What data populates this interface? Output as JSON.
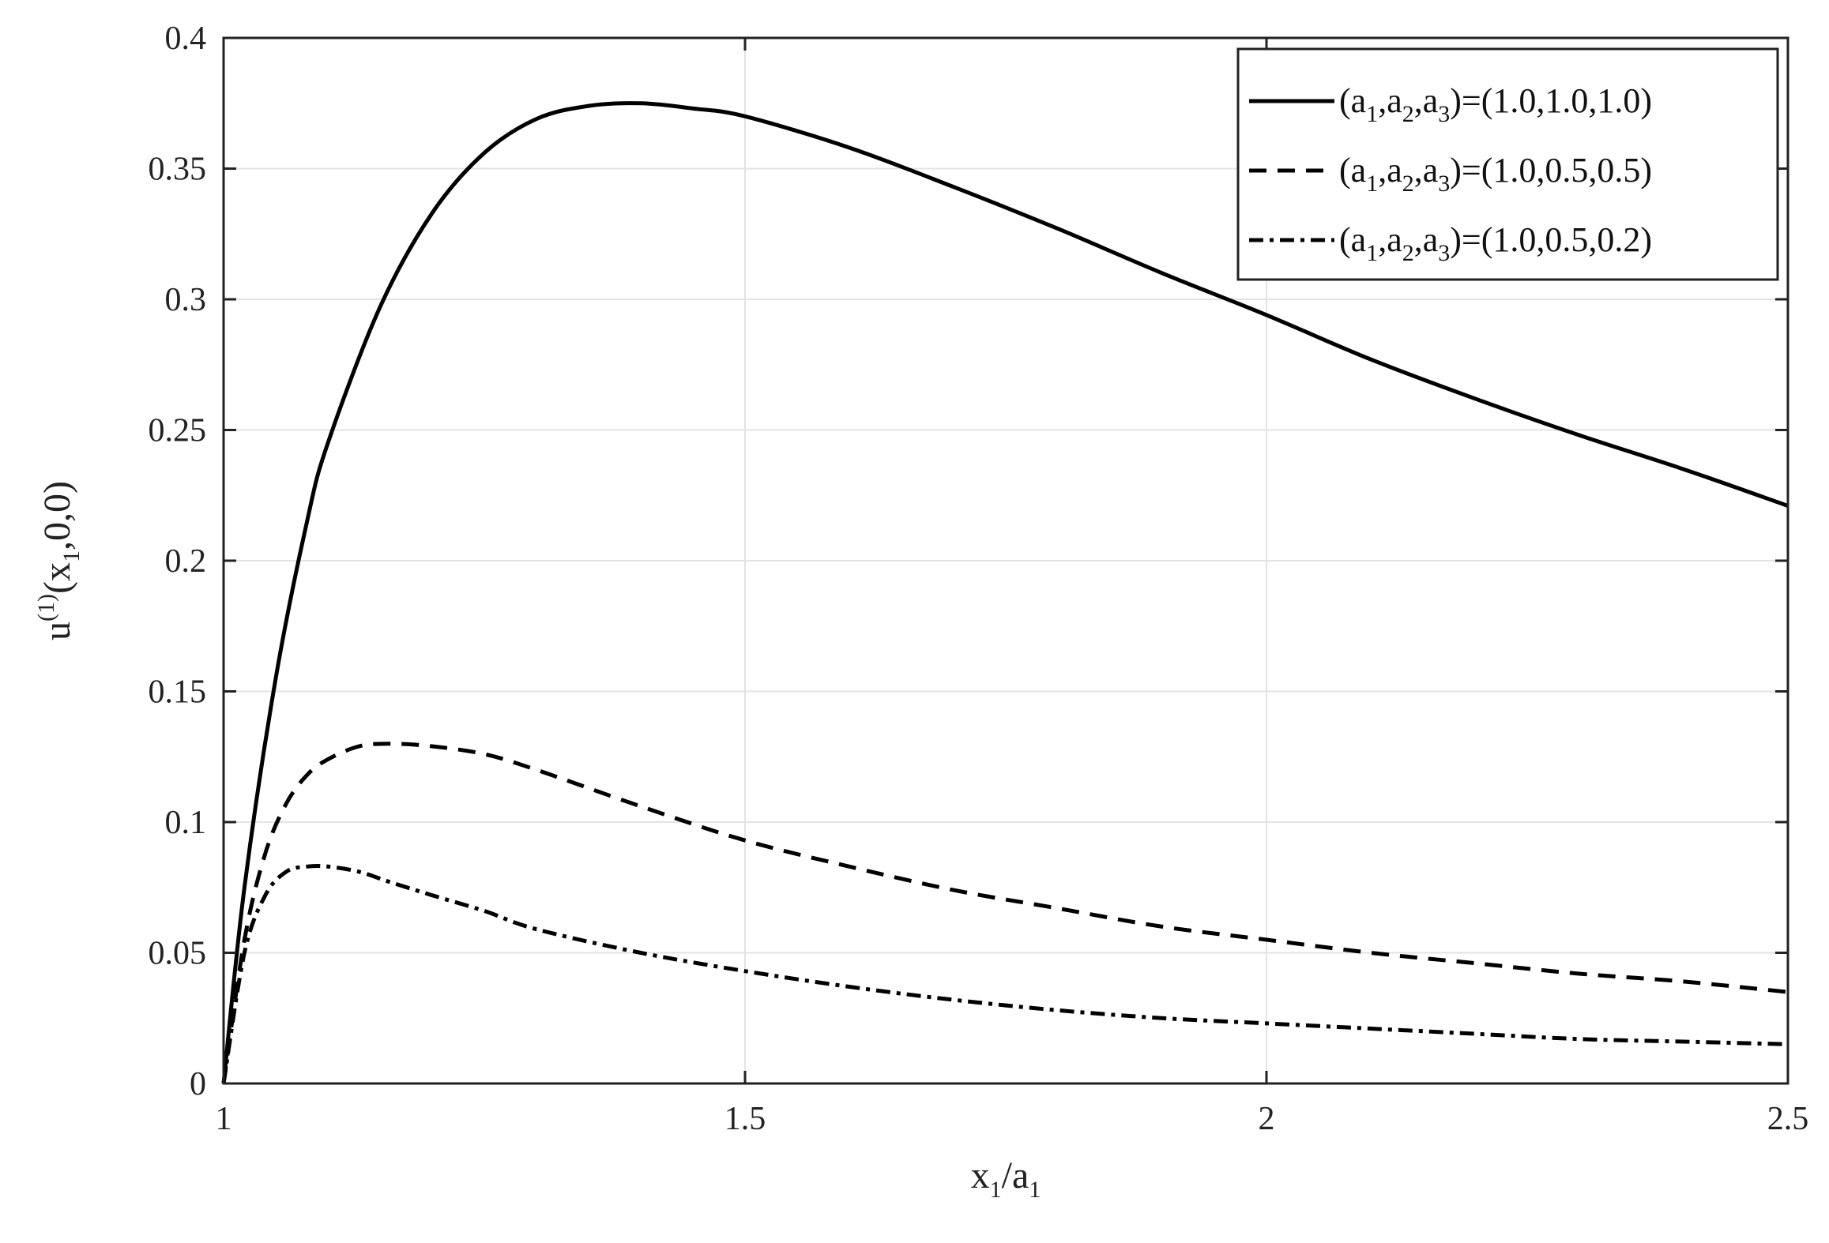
{
  "chart_data": {
    "type": "line",
    "xlim": [
      1,
      2.5
    ],
    "ylim": [
      0,
      0.4
    ],
    "x_ticks": [
      {
        "value": 1,
        "label": "1"
      },
      {
        "value": 1.5,
        "label": "1.5"
      },
      {
        "value": 2,
        "label": "2"
      },
      {
        "value": 2.5,
        "label": "2.5"
      }
    ],
    "y_ticks": [
      {
        "value": 0,
        "label": "0"
      },
      {
        "value": 0.05,
        "label": "0.05"
      },
      {
        "value": 0.1,
        "label": "0.1"
      },
      {
        "value": 0.15,
        "label": "0.15"
      },
      {
        "value": 0.2,
        "label": "0.2"
      },
      {
        "value": 0.25,
        "label": "0.25"
      },
      {
        "value": 0.3,
        "label": "0.3"
      },
      {
        "value": 0.35,
        "label": "0.35"
      },
      {
        "value": 0.4,
        "label": "0.4"
      }
    ],
    "xlabel": {
      "base": "x",
      "sub": "1",
      "mid": "/a",
      "sub2": "1"
    },
    "ylabel": {
      "pre": "u",
      "sup": "(1)",
      "mid": "(x",
      "sub": "1",
      "post": ",0,0)"
    },
    "grid": true,
    "legend_position": "top-right",
    "series": [
      {
        "name": "(a1,a2,a3)=(1.0,1.0,1.0)",
        "legend": {
          "p1": "(a",
          "s1": "1",
          "p2": ",a",
          "s2": "2",
          "p3": ",a",
          "s3": "3",
          "p4": ")=(1.0,1.0,1.0)"
        },
        "style": "solid",
        "color": "#000000",
        "x": [
          1.0,
          1.02,
          1.05,
          1.08,
          1.1,
          1.15,
          1.2,
          1.25,
          1.3,
          1.35,
          1.4,
          1.45,
          1.5,
          1.6,
          1.7,
          1.8,
          1.9,
          2.0,
          2.1,
          2.2,
          2.3,
          2.4,
          2.5
        ],
        "y": [
          0.0,
          0.075,
          0.155,
          0.215,
          0.245,
          0.297,
          0.333,
          0.356,
          0.369,
          0.374,
          0.375,
          0.373,
          0.37,
          0.358,
          0.343,
          0.327,
          0.31,
          0.294,
          0.277,
          0.262,
          0.248,
          0.235,
          0.221
        ]
      },
      {
        "name": "(a1,a2,a3)=(1.0,0.5,0.5)",
        "legend": {
          "p1": "(a",
          "s1": "1",
          "p2": ",a",
          "s2": "2",
          "p3": ",a",
          "s3": "3",
          "p4": ")=(1.0,0.5,0.5)"
        },
        "style": "dashed",
        "color": "#000000",
        "x": [
          1.0,
          1.02,
          1.04,
          1.06,
          1.08,
          1.1,
          1.13,
          1.16,
          1.2,
          1.25,
          1.3,
          1.4,
          1.5,
          1.6,
          1.7,
          1.8,
          1.9,
          2.0,
          2.1,
          2.2,
          2.3,
          2.4,
          2.5
        ],
        "y": [
          0.0,
          0.055,
          0.088,
          0.107,
          0.118,
          0.124,
          0.129,
          0.13,
          0.129,
          0.126,
          0.12,
          0.106,
          0.093,
          0.083,
          0.074,
          0.067,
          0.06,
          0.055,
          0.05,
          0.046,
          0.042,
          0.039,
          0.035
        ]
      },
      {
        "name": "(a1,a2,a3)=(1.0,0.5,0.2)",
        "legend": {
          "p1": "(a",
          "s1": "1",
          "p2": ",a",
          "s2": "2",
          "p3": ",a",
          "s3": "3",
          "p4": ")=(1.0,0.5,0.2)"
        },
        "style": "dashdot",
        "color": "#000000",
        "x": [
          1.0,
          1.02,
          1.04,
          1.06,
          1.08,
          1.1,
          1.13,
          1.16,
          1.2,
          1.25,
          1.3,
          1.4,
          1.5,
          1.6,
          1.7,
          1.8,
          1.9,
          2.0,
          2.1,
          2.2,
          2.3,
          2.4,
          2.5
        ],
        "y": [
          0.0,
          0.05,
          0.072,
          0.081,
          0.083,
          0.083,
          0.081,
          0.077,
          0.072,
          0.066,
          0.059,
          0.05,
          0.043,
          0.037,
          0.032,
          0.028,
          0.025,
          0.023,
          0.021,
          0.019,
          0.017,
          0.016,
          0.015
        ]
      }
    ]
  }
}
